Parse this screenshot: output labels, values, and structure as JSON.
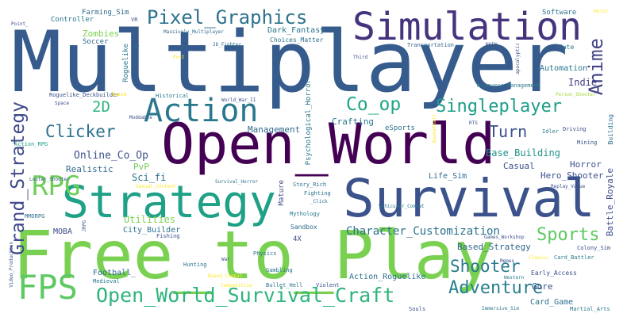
{
  "palette": {
    "dark_purple": "#440154",
    "indigo": "#46337e",
    "blue": "#365c8d",
    "steel": "#2f6c8e",
    "teal": "#277f8e",
    "sea": "#1fa187",
    "green": "#4ac16d",
    "lime": "#a0da39",
    "yellow": "#fde725"
  },
  "words": {
    "w1": "Multiplayer",
    "w2": "Free_to_Play",
    "w3": "Open_World",
    "w4": "Survival",
    "w5": "Strategy",
    "w6": "Simulation",
    "w7": "Action",
    "w8": "FPS",
    "w9": "Open_World_Survival_Craft",
    "w10": "RPG",
    "w11": "Anime",
    "w12": "Pixel_Graphics",
    "w13": "Grand_Strategy",
    "w14": "Adventure",
    "w15": "Singleplayer",
    "w16": "Co_op",
    "w17": "Sports",
    "w18": "Clicker",
    "w19": "Shooter",
    "w20": "Turn",
    "w21": "2D",
    "w22": "Character_Customization",
    "w23": "Online_Co_Op",
    "w24": "Base_Building",
    "w25": "Indie",
    "w26": "Crafting",
    "w27": "Management",
    "w28": "Sci_fi",
    "w29": "PvP",
    "w30": "Realistic",
    "w31": "Based_Strategy",
    "w32": "Zombies",
    "w33": "Dark_Fantasy",
    "w34": "Automation",
    "w35": "Casual",
    "w36": "Horror",
    "w37": "Hero_Shooter",
    "w38": "Life_Sim",
    "w39": "Battle_Royale",
    "w40": "Card_Game",
    "w41": "Gore",
    "w42": "Action_Roguelike",
    "w43": "Utilities",
    "w44": "City_Builder",
    "w45": "MOBA",
    "w46": "Football_",
    "w47": "Roguelike",
    "w48": "Controller",
    "w49": "Farming_Sim",
    "w50": "Software",
    "w51": "Soccer",
    "w52": "Massively_Multiplayer",
    "w53": "Choices_Matter",
    "w54": "2D_Fighter",
    "w55": "Transportation",
    "w56": "Resource_Management",
    "w57": "Historical",
    "w58": "Roguelike_Deckbuilder",
    "w59": "Psychological_Horror",
    "w60": "eSports",
    "w61": "Cute",
    "w62": "Mature",
    "w63": "Sandbox",
    "w64": "4X",
    "w65": "Early_Access",
    "w66": "Fishing",
    "w67": "Hunting",
    "w68": "Medieval",
    "w69": "Fighting",
    "w70": "Story_Rich",
    "w71": "Mythology",
    "w72": "Idler",
    "w73": "Mining",
    "w74": "Driving",
    "w75": "Building",
    "w76": "Games_Workshop",
    "w77": "Colony_Sim",
    "w78": "Card_Battler",
    "w79": "Memes",
    "w80": "Martial_Arts",
    "w81": "Physics",
    "w82": "Gambling",
    "w83": "War",
    "w84": "Bullet_Hell",
    "w85": "Violent",
    "w86": "Souls",
    "w87": "Immersive_Sim",
    "w88": "Western",
    "w89": "MMORPG",
    "w90": "Looter_Shooter",
    "w91": "Action_RPG",
    "w92": "Moddable",
    "w93": "Space",
    "w94": "Heist",
    "w95": "VR",
    "w96": "3D",
    "w97": "Point_",
    "w98": "Post",
    "w99": "Third",
    "w100": "NSFW",
    "w101": "Person_Shooter",
    "w102": "World_War_II",
    "w103": "Survival_Horror",
    "w104": "_Click",
    "w105": "Vehicular_Combat",
    "w106": "Replay_Value",
    "w107": "Competitive",
    "w108": "Classic",
    "w109": "Based_Combat",
    "w110": "Sexual_Content",
    "w111": "Video_Production",
    "w112": "JRPG",
    "w113": "RTS",
    "w114": "Basketball",
    "w115": "apocalyptic",
    "w116": "Based"
  }
}
